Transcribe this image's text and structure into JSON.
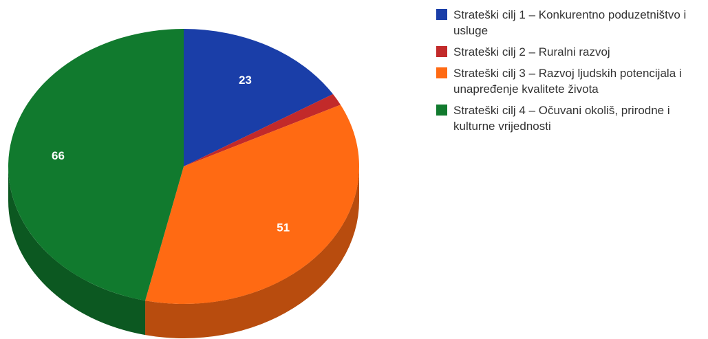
{
  "chart_data": {
    "type": "pie",
    "title": "",
    "three_d": true,
    "legend_position": "right",
    "categories": [
      "Strateški cilj 1 – Konkurentno poduzetništvo i usluge",
      "Strateški cilj 2 – Ruralni razvoj",
      "Strateški cilj 3 – Razvoj ljudskih potencijala i unapređenje kvalitete života",
      "Strateški cilj 4 – Očuvani okoliš, prirodne i kulturne vrijednosti"
    ],
    "values": [
      23,
      2,
      51,
      66
    ],
    "data_labels": [
      "23",
      "",
      "51",
      "66"
    ],
    "colors": [
      "#1a3ea8",
      "#c22a2a",
      "#ff6a13",
      "#117a2e"
    ]
  }
}
